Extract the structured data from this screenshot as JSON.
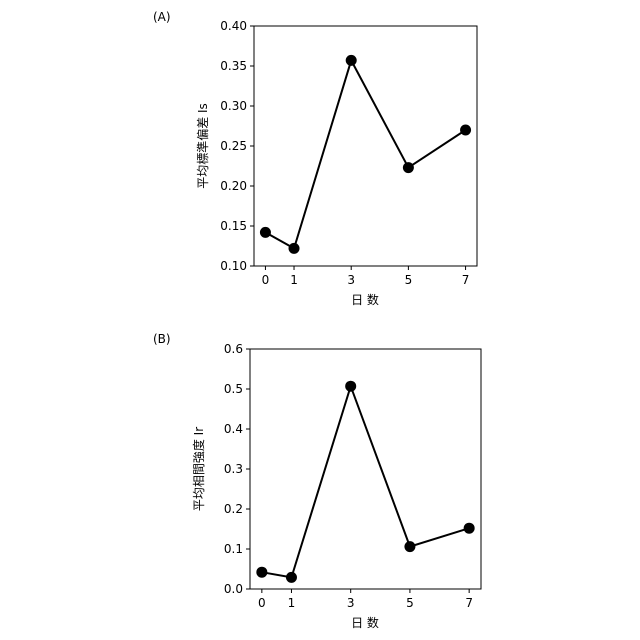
{
  "chart_data": [
    {
      "panel_label": "(A)",
      "type": "line",
      "x": [
        0,
        1,
        3,
        5,
        7
      ],
      "series": [
        {
          "values": [
            0.142,
            0.122,
            0.357,
            0.223,
            0.27
          ]
        }
      ],
      "xticks": [
        "0",
        "1",
        "3",
        "5",
        "7"
      ],
      "yticks": [
        "0.10",
        "0.15",
        "0.20",
        "0.25",
        "0.30",
        "0.35",
        "0.40"
      ],
      "xlabel": "日 数",
      "ylabel": "平均標準偏差 Is",
      "xlim": [
        -0.4,
        7.4
      ],
      "ylim": [
        0.1,
        0.4
      ],
      "grid": false,
      "color": "#000000"
    },
    {
      "panel_label": "(B)",
      "type": "line",
      "x": [
        0,
        1,
        3,
        5,
        7
      ],
      "series": [
        {
          "values": [
            0.042,
            0.029,
            0.507,
            0.106,
            0.152
          ]
        }
      ],
      "xticks": [
        "0",
        "1",
        "3",
        "5",
        "7"
      ],
      "yticks": [
        "0.0",
        "0.1",
        "0.2",
        "0.3",
        "0.4",
        "0.5",
        "0.6"
      ],
      "xlabel": "日 数",
      "ylabel": "平均相間強度 Ir",
      "xlim": [
        -0.4,
        7.4
      ],
      "ylim": [
        0.0,
        0.6
      ],
      "grid": false,
      "color": "#000000"
    }
  ]
}
